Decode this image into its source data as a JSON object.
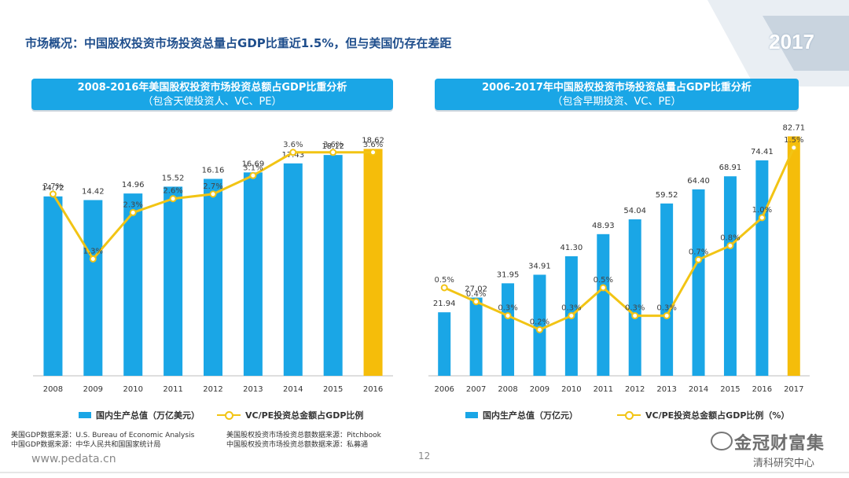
{
  "slide": {
    "title": "市场概况：中国股权投资市场投资总量占GDP比重近1.5%，但与美国仍存在差距",
    "year_badge": "2017",
    "url": "www.pedata.cn",
    "page_number": "12",
    "watermark_text": "金冠财富集",
    "watermark_sub": "清科研究中心"
  },
  "colors": {
    "bar": "#1aa6e6",
    "bar_highlight": "#f5bd0a",
    "line": "#f2c414",
    "header": "#1aa6e6",
    "title": "#1f4e8c"
  },
  "sources": {
    "us_gdp": "美国GDP数据来源：U.S. Bureau of Economic Analysis",
    "cn_gdp": "中国GDP数据来源：中华人民共和国国家统计局",
    "us_invest": "美国股权投资市场投资总额数据来源：Pitchbook",
    "cn_invest": "中国股权投资市场投资总额数据来源：私募通"
  },
  "chart_data": [
    {
      "type": "bar",
      "title": "2008-2016年美国股权投资市场投资总额占GDP比重分析",
      "subtitle": "（包含天使投资人、VC、PE）",
      "categories": [
        "2008",
        "2009",
        "2010",
        "2011",
        "2012",
        "2013",
        "2014",
        "2015",
        "2016"
      ],
      "series": [
        {
          "name": "国内生产总值（万亿美元）",
          "kind": "bar",
          "values": [
            14.72,
            14.42,
            14.96,
            15.52,
            16.16,
            16.69,
            17.43,
            18.12,
            18.62
          ],
          "labels": [
            "14.72",
            "14.42",
            "14.96",
            "15.52",
            "16.16",
            "16.69",
            "17.43",
            "18.12",
            "18.62"
          ]
        },
        {
          "name": "VC/PE投资总金额占GDP比例",
          "kind": "line",
          "values": [
            2.7,
            1.3,
            2.3,
            2.6,
            2.7,
            3.1,
            3.6,
            3.6,
            3.6
          ],
          "labels": [
            "2.7%",
            "1.3%",
            "2.3%",
            "2.6%",
            "2.7%",
            "3.1%",
            "3.6%",
            "3.6%",
            "3.6%"
          ]
        }
      ],
      "highlight_index": 8,
      "grid": false,
      "legend_position": "bottom"
    },
    {
      "type": "bar",
      "title": "2006-2017年中国股权投资市场投资总量占GDP比重分析",
      "subtitle": "（包含早期投资、VC、PE）",
      "categories": [
        "2006",
        "2007",
        "2008",
        "2009",
        "2010",
        "2011",
        "2012",
        "2013",
        "2014",
        "2015",
        "2016",
        "2017"
      ],
      "series": [
        {
          "name": "国内生产总值（万亿元）",
          "kind": "bar",
          "values": [
            21.94,
            27.02,
            31.95,
            34.91,
            41.3,
            48.93,
            54.04,
            59.52,
            64.4,
            68.91,
            74.41,
            82.71
          ],
          "labels": [
            "21.94",
            "27.02",
            "31.95",
            "34.91",
            "41.30",
            "48.93",
            "54.04",
            "59.52",
            "64.40",
            "68.91",
            "74.41",
            "82.71"
          ]
        },
        {
          "name": "VC/PE投资总金额占GDP比例（%）",
          "kind": "line",
          "values": [
            0.5,
            0.4,
            0.3,
            0.2,
            0.3,
            0.5,
            0.3,
            0.3,
            0.7,
            0.8,
            1.0,
            1.5
          ],
          "labels": [
            "0.5%",
            "0.4%",
            "0.3%",
            "0.2%",
            "0.3%",
            "0.5%",
            "0.3%",
            "0.3%",
            "0.7%",
            "0.8%",
            "1.0%",
            "1.5%"
          ]
        }
      ],
      "highlight_index": 11,
      "grid": false,
      "legend_position": "bottom"
    }
  ]
}
